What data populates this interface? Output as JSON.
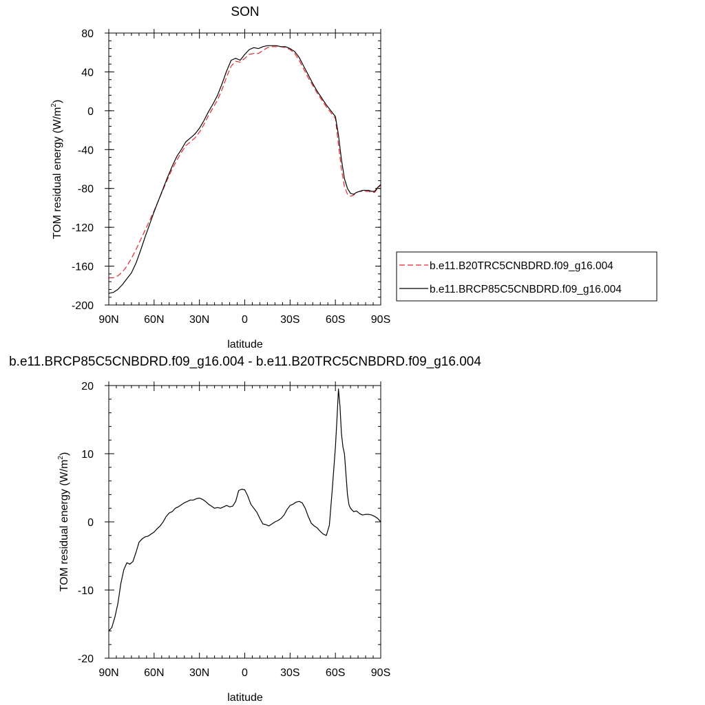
{
  "chart_data": [
    {
      "type": "line",
      "title": "SON",
      "xlabel": "latitude",
      "ylabel": "TOM residual energy (W/m",
      "ylabel_sup": "2",
      "ylabel_close": ")",
      "xlim": [
        90,
        -90
      ],
      "ylim": [
        -200,
        80
      ],
      "xticks": [
        {
          "value": 90,
          "label": "90N"
        },
        {
          "value": 60,
          "label": "60N"
        },
        {
          "value": 30,
          "label": "30N"
        },
        {
          "value": 0,
          "label": "0"
        },
        {
          "value": -30,
          "label": "30S"
        },
        {
          "value": -60,
          "label": "60S"
        },
        {
          "value": -90,
          "label": "90S"
        }
      ],
      "yticks": [
        80,
        40,
        0,
        -40,
        -80,
        -120,
        -160,
        -200
      ],
      "yticklabels": [
        "80",
        "40",
        "0",
        "-40",
        "-80",
        "-120",
        "-160",
        "-200"
      ],
      "legend_position": "right",
      "series": [
        {
          "name": "b.e11.B20TRC5CNBDRD.f09_g16.004",
          "color": "#e8242c",
          "dash": "dashed",
          "x": [
            90,
            87,
            84,
            81,
            78,
            75,
            72,
            69,
            66,
            63,
            60,
            57,
            54,
            51,
            48,
            45,
            42,
            39,
            36,
            33,
            30,
            27,
            24,
            21,
            18,
            15,
            12,
            9,
            6,
            3,
            0,
            -3,
            -6,
            -9,
            -12,
            -15,
            -18,
            -21,
            -24,
            -27,
            -30,
            -33,
            -36,
            -39,
            -42,
            -45,
            -48,
            -51,
            -54,
            -57,
            -60,
            -62,
            -64,
            -66,
            -68,
            -70,
            -72,
            -74,
            -76,
            -78,
            -80,
            -82,
            -84,
            -86,
            -88,
            -90
          ],
          "y": [
            -172,
            -172,
            -170,
            -166,
            -160,
            -152,
            -143,
            -133,
            -123,
            -113,
            -103,
            -92,
            -81,
            -70,
            -60,
            -51,
            -43,
            -36,
            -32,
            -28,
            -22,
            -14,
            -5,
            3,
            11,
            22,
            35,
            46,
            51,
            50,
            54,
            58,
            59,
            59,
            62,
            65,
            66,
            66,
            66,
            65,
            63,
            59,
            52,
            43,
            34,
            26,
            18,
            11,
            4,
            -2,
            -8,
            -35,
            -60,
            -78,
            -86,
            -88,
            -87,
            -84,
            -83,
            -83,
            -83,
            -83,
            -84,
            -84,
            -80,
            -76
          ]
        },
        {
          "name": "b.e11.BRCP85C5CNBDRD.f09_g16.004",
          "color": "#000000",
          "dash": "solid",
          "x": [
            90,
            87,
            84,
            81,
            78,
            75,
            72,
            69,
            66,
            63,
            60,
            57,
            54,
            51,
            48,
            45,
            42,
            39,
            36,
            33,
            30,
            27,
            24,
            21,
            18,
            15,
            12,
            9,
            6,
            3,
            0,
            -3,
            -6,
            -9,
            -12,
            -15,
            -18,
            -21,
            -24,
            -27,
            -30,
            -33,
            -36,
            -39,
            -42,
            -45,
            -48,
            -51,
            -54,
            -57,
            -60,
            -62,
            -64,
            -66,
            -68,
            -70,
            -72,
            -74,
            -76,
            -78,
            -80,
            -82,
            -84,
            -86,
            -88,
            -90
          ],
          "y": [
            -188,
            -187,
            -184,
            -179,
            -173,
            -167,
            -157,
            -144,
            -130,
            -117,
            -104,
            -92,
            -80,
            -68,
            -57,
            -47,
            -40,
            -32,
            -28,
            -24,
            -18,
            -10,
            -1,
            7,
            16,
            28,
            41,
            52,
            54,
            52,
            58,
            63,
            65,
            64,
            66,
            67,
            67,
            67,
            66,
            66,
            64,
            61,
            55,
            46,
            37,
            28,
            20,
            13,
            6,
            0,
            -6,
            -25,
            -50,
            -70,
            -80,
            -85,
            -86,
            -84,
            -83,
            -82,
            -82,
            -82,
            -83,
            -83,
            -79,
            -76
          ]
        }
      ]
    },
    {
      "type": "line",
      "title": "b.e11.BRCP85C5CNBDRD.f09_g16.004 - b.e11.B20TRC5CNBDRD.f09_g16.004",
      "xlabel": "latitude",
      "ylabel": "TOM residual energy (W/m",
      "ylabel_sup": "2",
      "ylabel_close": ")",
      "xlim": [
        90,
        -90
      ],
      "ylim": [
        -20,
        20
      ],
      "xticks": [
        {
          "value": 90,
          "label": "90N"
        },
        {
          "value": 60,
          "label": "60N"
        },
        {
          "value": 30,
          "label": "30N"
        },
        {
          "value": 0,
          "label": "0"
        },
        {
          "value": -30,
          "label": "30S"
        },
        {
          "value": -60,
          "label": "60S"
        },
        {
          "value": -90,
          "label": "90S"
        }
      ],
      "yticks": [
        20,
        10,
        0,
        -10,
        -20
      ],
      "yticklabels": [
        "20",
        "10",
        "0",
        "-10",
        "-20"
      ],
      "series": [
        {
          "color": "#000000",
          "dash": "solid",
          "x": [
            90,
            88,
            86,
            84,
            82,
            80,
            78,
            76,
            74,
            72,
            70,
            68,
            66,
            64,
            62,
            60,
            58,
            56,
            54,
            52,
            50,
            48,
            46,
            44,
            42,
            40,
            38,
            36,
            34,
            32,
            30,
            28,
            26,
            24,
            22,
            20,
            18,
            16,
            14,
            12,
            10,
            8,
            6,
            4,
            2,
            0,
            -2,
            -4,
            -6,
            -8,
            -10,
            -12,
            -14,
            -16,
            -18,
            -20,
            -22,
            -24,
            -26,
            -28,
            -30,
            -32,
            -34,
            -36,
            -38,
            -40,
            -42,
            -44,
            -46,
            -48,
            -50,
            -52,
            -54,
            -56,
            -58,
            -60,
            -61,
            -62,
            -63,
            -64,
            -65,
            -66,
            -67,
            -68,
            -69,
            -70,
            -72,
            -74,
            -76,
            -78,
            -80,
            -82,
            -84,
            -86,
            -88,
            -90
          ],
          "y": [
            -16,
            -15.5,
            -14,
            -12,
            -9,
            -7,
            -6,
            -6.2,
            -5.8,
            -4.5,
            -3,
            -2.5,
            -2.2,
            -2.1,
            -1.8,
            -1.5,
            -1,
            -0.6,
            0,
            0.8,
            1.3,
            1.5,
            2,
            2.2,
            2.5,
            2.8,
            3,
            3.2,
            3.2,
            3.4,
            3.5,
            3.3,
            3,
            2.6,
            2.3,
            2,
            2.1,
            2,
            2.2,
            2.4,
            2.2,
            2.3,
            3,
            4.6,
            4.8,
            4.7,
            3.8,
            2.6,
            2,
            1.4,
            0.5,
            -0.3,
            -0.4,
            -0.6,
            -0.3,
            0,
            0.2,
            0.5,
            1,
            1.8,
            2.4,
            2.6,
            2.9,
            3,
            2.8,
            2,
            0.8,
            -0.2,
            -0.6,
            -0.9,
            -1.4,
            -1.8,
            -2,
            -0.5,
            5,
            11,
            15,
            19.5,
            17,
            13,
            11,
            10,
            7,
            4,
            2.5,
            2,
            1.5,
            1.6,
            1.2,
            1,
            1.1,
            1.1,
            1,
            0.8,
            0.5,
            0
          ]
        }
      ]
    }
  ]
}
